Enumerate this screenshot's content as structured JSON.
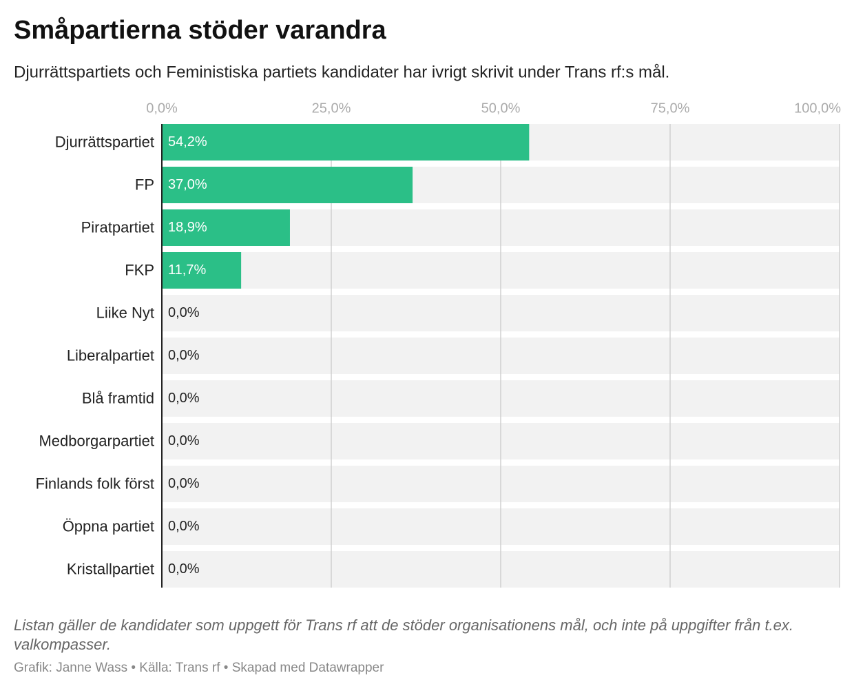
{
  "chart_data": {
    "type": "bar",
    "orientation": "horizontal",
    "title": "Småpartierna stöder varandra",
    "subtitle": "Djurrättspartiets och Feministiska partiets kandidater har ivrigt skrivit under Trans rf:s mål.",
    "categories": [
      "Djurrättspartiet",
      "FP",
      "Piratpartiet",
      "FKP",
      "Liike Nyt",
      "Liberalpartiet",
      "Blå framtid",
      "Medborgarpartiet",
      "Finlands folk först",
      "Öppna partiet",
      "Kristallpartiet"
    ],
    "values": [
      54.2,
      37.0,
      18.9,
      11.7,
      0,
      0,
      0,
      0,
      0,
      0,
      0
    ],
    "value_labels": [
      "54,2%",
      "37,0%",
      "18,9%",
      "11,7%",
      "0,0%",
      "0,0%",
      "0,0%",
      "0,0%",
      "0,0%",
      "0,0%",
      "0,0%"
    ],
    "color": "#2bbf87",
    "xlim": [
      0,
      100
    ],
    "xticks": [
      {
        "value": 0,
        "label": "0,0%"
      },
      {
        "value": 25,
        "label": "25,0%"
      },
      {
        "value": 50,
        "label": "50,0%"
      },
      {
        "value": 75,
        "label": "75,0%"
      },
      {
        "value": 100,
        "label": "100,0%"
      }
    ],
    "grid": true,
    "note": "Listan gäller de kandidater som uppgett för Trans rf att de stöder organisationens mål, och inte på uppgifter från t.ex. valkompasser.",
    "credit": "Grafik: Janne Wass • Källa: Trans rf • Skapad med Datawrapper"
  }
}
